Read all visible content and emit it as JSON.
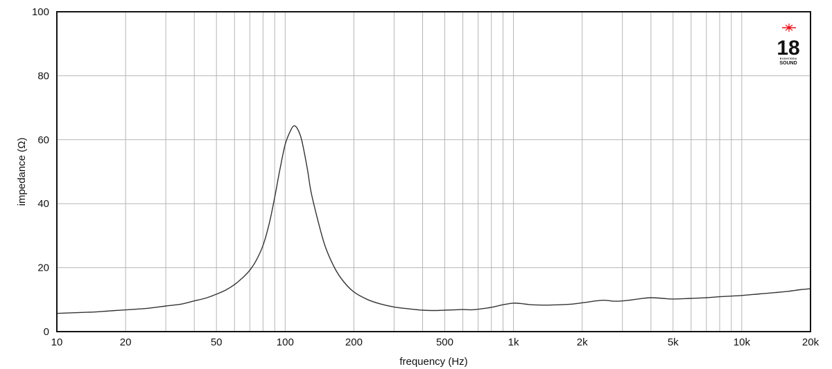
{
  "chart_data": {
    "type": "line",
    "title": "",
    "xlabel": "frequency (Hz)",
    "ylabel": "impedance (Ω)",
    "xscale": "log",
    "xlim": [
      10,
      20000
    ],
    "ylim": [
      0,
      100
    ],
    "grid": true,
    "legend": null,
    "x_ticks": [
      {
        "value": 10,
        "label": "10"
      },
      {
        "value": 20,
        "label": "20"
      },
      {
        "value": 50,
        "label": "50"
      },
      {
        "value": 100,
        "label": "100"
      },
      {
        "value": 200,
        "label": "200"
      },
      {
        "value": 500,
        "label": "500"
      },
      {
        "value": 1000,
        "label": "1k"
      },
      {
        "value": 2000,
        "label": "2k"
      },
      {
        "value": 5000,
        "label": "5k"
      },
      {
        "value": 10000,
        "label": "10k"
      },
      {
        "value": 20000,
        "label": "20k"
      }
    ],
    "y_ticks": [
      {
        "value": 0,
        "label": "0"
      },
      {
        "value": 20,
        "label": "20"
      },
      {
        "value": 40,
        "label": "40"
      },
      {
        "value": 60,
        "label": "60"
      },
      {
        "value": 80,
        "label": "80"
      },
      {
        "value": 100,
        "label": "100"
      }
    ],
    "series": [
      {
        "name": "impedance",
        "color": "#333333",
        "x": [
          10,
          12,
          15,
          18,
          20,
          25,
          30,
          35,
          40,
          45,
          50,
          55,
          60,
          65,
          70,
          75,
          80,
          85,
          90,
          95,
          100,
          105,
          109,
          113,
          118,
          125,
          130,
          140,
          150,
          165,
          180,
          200,
          230,
          260,
          300,
          350,
          400,
          450,
          500,
          550,
          600,
          650,
          700,
          800,
          900,
          1000,
          1100,
          1200,
          1400,
          1600,
          1800,
          2000,
          2300,
          2500,
          2800,
          3200,
          3600,
          4000,
          4500,
          5000,
          6000,
          7000,
          8000,
          9000,
          10000,
          12000,
          14000,
          16000,
          18000,
          20000
        ],
        "values": [
          5.7,
          5.9,
          6.2,
          6.6,
          6.8,
          7.3,
          8.0,
          8.6,
          9.6,
          10.5,
          11.7,
          13.0,
          14.7,
          16.8,
          19.2,
          22.5,
          27.0,
          33.5,
          42.0,
          51.0,
          58.5,
          62.5,
          64.3,
          63.5,
          60.0,
          51.0,
          43.5,
          34.0,
          26.5,
          19.8,
          15.7,
          12.4,
          10.0,
          8.7,
          7.7,
          7.1,
          6.7,
          6.6,
          6.7,
          6.8,
          6.9,
          6.8,
          7.0,
          7.6,
          8.4,
          8.9,
          8.7,
          8.4,
          8.3,
          8.4,
          8.6,
          9.0,
          9.6,
          9.8,
          9.5,
          9.8,
          10.3,
          10.6,
          10.4,
          10.2,
          10.4,
          10.6,
          10.9,
          11.1,
          11.3,
          11.8,
          12.2,
          12.6,
          13.1,
          13.4
        ]
      }
    ],
    "annotations": [
      {
        "type": "logo",
        "text_main": "18",
        "text_sub1": "EIGHTEEN",
        "text_sub2": "SOUND",
        "color_star": "#e8141c"
      }
    ]
  },
  "logo": {
    "number": "18",
    "line1": "EIGHTEEN",
    "line2": "SOUND",
    "star_color": "#e8141c"
  }
}
